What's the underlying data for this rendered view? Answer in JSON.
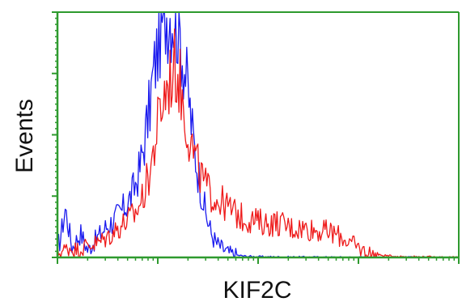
{
  "chart_data": {
    "type": "line",
    "title": "",
    "xlabel": "KIF2C",
    "ylabel": "Events",
    "x_scale": "log",
    "xlim": [
      1,
      10000
    ],
    "ylim": [
      0,
      100
    ],
    "grid": false,
    "legend": "none",
    "colors": {
      "frame": "#2e9a2e",
      "series_blue": "#1a1aee",
      "series_red": "#ee1a1a"
    },
    "series": [
      {
        "color": "#1a1aee",
        "x": [
          1.05,
          1.2,
          1.4,
          1.7,
          2.0,
          2.5,
          3.0,
          3.6,
          4.2,
          5.0,
          5.8,
          6.6,
          7.4,
          8.2,
          9.0,
          10,
          11,
          12,
          13.5,
          15,
          16.5,
          18,
          20,
          22,
          24,
          27,
          30,
          34,
          38,
          43,
          50,
          60,
          75,
          100,
          150,
          300,
          1000,
          10000
        ],
        "values": [
          6,
          20,
          4,
          10,
          3,
          8,
          12,
          15,
          18,
          22,
          28,
          36,
          48,
          60,
          74,
          86,
          96,
          100,
          100,
          98,
          92,
          80,
          68,
          52,
          40,
          28,
          18,
          10,
          6,
          4,
          2,
          1,
          0.5,
          0.3,
          0.2,
          0.1,
          0,
          0
        ]
      },
      {
        "color": "#ee1a1a",
        "x": [
          1.05,
          1.3,
          1.6,
          2.0,
          2.6,
          3.3,
          4.0,
          5.0,
          6.0,
          7.0,
          8.0,
          9.0,
          10,
          11,
          12,
          13.5,
          15,
          16.5,
          18,
          20,
          23,
          27,
          32,
          38,
          45,
          55,
          70,
          90,
          120,
          160,
          220,
          300,
          400,
          550,
          700,
          900,
          1200,
          1600,
          2200,
          3000,
          10000
        ],
        "values": [
          2,
          4,
          3,
          5,
          6,
          9,
          12,
          15,
          18,
          24,
          32,
          42,
          54,
          62,
          68,
          74,
          78,
          72,
          62,
          52,
          42,
          33,
          27,
          24,
          22,
          19,
          16,
          15,
          14,
          14,
          12,
          12,
          11,
          10,
          8,
          5,
          2,
          1,
          0.5,
          0.3,
          0
        ]
      }
    ]
  }
}
